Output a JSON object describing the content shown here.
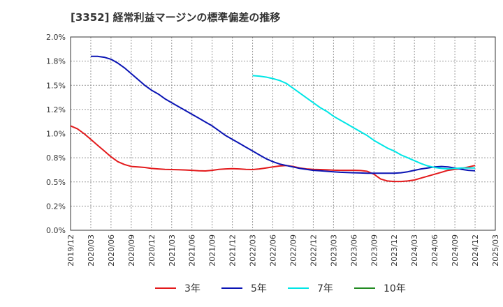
{
  "chart_data": {
    "type": "line",
    "title": "[3352]  経常利益マージンの標準偏差の推移",
    "x_ticks": [
      "2019/12",
      "2020/03",
      "2020/06",
      "2020/09",
      "2020/12",
      "2021/03",
      "2021/06",
      "2021/09",
      "2021/12",
      "2022/03",
      "2022/06",
      "2022/09",
      "2022/12",
      "2023/03",
      "2023/06",
      "2023/09",
      "2023/12",
      "2024/03",
      "2024/06",
      "2024/09",
      "2024/12",
      "2025/03"
    ],
    "y_ticks": [
      "0.0%",
      "0.2%",
      "0.5%",
      "0.8%",
      "1.0%",
      "1.2%",
      "1.5%",
      "1.8%",
      "2.0%"
    ],
    "ylim": [
      0,
      2.0
    ],
    "grid": true,
    "legend_position": "bottom",
    "series": [
      {
        "name": "3年",
        "color": "#e31a1c",
        "x": [
          "2019/12",
          "2020/01",
          "2020/02",
          "2020/03",
          "2020/04",
          "2020/05",
          "2020/06",
          "2020/07",
          "2020/08",
          "2020/09",
          "2020/10",
          "2020/11",
          "2020/12",
          "2021/01",
          "2021/02",
          "2021/03",
          "2021/04",
          "2021/05",
          "2021/06",
          "2021/07",
          "2021/08",
          "2021/09",
          "2021/10",
          "2021/11",
          "2021/12",
          "2022/01",
          "2022/02",
          "2022/03",
          "2022/04",
          "2022/05",
          "2022/06",
          "2022/07",
          "2022/08",
          "2022/09",
          "2022/10",
          "2022/11",
          "2022/12",
          "2023/01",
          "2023/02",
          "2023/03",
          "2023/04",
          "2023/05",
          "2023/06",
          "2023/07",
          "2023/08",
          "2023/09",
          "2023/10",
          "2023/11",
          "2023/12",
          "2024/01",
          "2024/02",
          "2024/03",
          "2024/04",
          "2024/05",
          "2024/06",
          "2024/07",
          "2024/08",
          "2024/09",
          "2024/10",
          "2024/11",
          "2024/12"
        ],
        "values": [
          1.08,
          1.05,
          1.0,
          0.94,
          0.88,
          0.82,
          0.76,
          0.71,
          0.68,
          0.66,
          0.655,
          0.65,
          0.64,
          0.635,
          0.63,
          0.628,
          0.626,
          0.624,
          0.62,
          0.616,
          0.614,
          0.62,
          0.63,
          0.635,
          0.637,
          0.635,
          0.63,
          0.628,
          0.635,
          0.645,
          0.655,
          0.665,
          0.67,
          0.66,
          0.645,
          0.635,
          0.63,
          0.628,
          0.625,
          0.622,
          0.62,
          0.62,
          0.62,
          0.618,
          0.61,
          0.58,
          0.53,
          0.51,
          0.505,
          0.505,
          0.51,
          0.52,
          0.54,
          0.56,
          0.58,
          0.6,
          0.62,
          0.63,
          0.64,
          0.655,
          0.67
        ]
      },
      {
        "name": "5年",
        "color": "#0a14b4",
        "x": [
          "2020/03",
          "2020/04",
          "2020/05",
          "2020/06",
          "2020/07",
          "2020/08",
          "2020/09",
          "2020/10",
          "2020/11",
          "2020/12",
          "2021/01",
          "2021/02",
          "2021/03",
          "2021/04",
          "2021/05",
          "2021/06",
          "2021/07",
          "2021/08",
          "2021/09",
          "2021/10",
          "2021/11",
          "2021/12",
          "2022/01",
          "2022/02",
          "2022/03",
          "2022/04",
          "2022/05",
          "2022/06",
          "2022/07",
          "2022/08",
          "2022/09",
          "2022/10",
          "2022/11",
          "2022/12",
          "2023/01",
          "2023/02",
          "2023/03",
          "2023/04",
          "2023/05",
          "2023/06",
          "2023/07",
          "2023/08",
          "2023/09",
          "2023/10",
          "2023/11",
          "2023/12",
          "2024/01",
          "2024/02",
          "2024/03",
          "2024/04",
          "2024/05",
          "2024/06",
          "2024/07",
          "2024/08",
          "2024/09",
          "2024/10",
          "2024/11",
          "2024/12"
        ],
        "values": [
          1.8,
          1.8,
          1.79,
          1.77,
          1.73,
          1.68,
          1.62,
          1.56,
          1.5,
          1.45,
          1.41,
          1.36,
          1.32,
          1.28,
          1.24,
          1.2,
          1.16,
          1.12,
          1.08,
          1.03,
          0.98,
          0.94,
          0.9,
          0.86,
          0.82,
          0.78,
          0.74,
          0.71,
          0.685,
          0.67,
          0.655,
          0.64,
          0.63,
          0.62,
          0.615,
          0.61,
          0.605,
          0.6,
          0.598,
          0.595,
          0.593,
          0.59,
          0.59,
          0.59,
          0.59,
          0.59,
          0.595,
          0.605,
          0.62,
          0.635,
          0.645,
          0.655,
          0.66,
          0.655,
          0.645,
          0.63,
          0.62,
          0.615
        ]
      },
      {
        "name": "7年",
        "color": "#00e6e6",
        "x": [
          "2022/03",
          "2022/04",
          "2022/05",
          "2022/06",
          "2022/07",
          "2022/08",
          "2022/09",
          "2022/10",
          "2022/11",
          "2022/12",
          "2023/01",
          "2023/02",
          "2023/03",
          "2023/04",
          "2023/05",
          "2023/06",
          "2023/07",
          "2023/08",
          "2023/09",
          "2023/10",
          "2023/11",
          "2023/12",
          "2024/01",
          "2024/02",
          "2024/03",
          "2024/04",
          "2024/05",
          "2024/06",
          "2024/07",
          "2024/08",
          "2024/09",
          "2024/10",
          "2024/11",
          "2024/12"
        ],
        "values": [
          1.6,
          1.595,
          1.585,
          1.57,
          1.55,
          1.52,
          1.47,
          1.42,
          1.37,
          1.32,
          1.27,
          1.23,
          1.18,
          1.14,
          1.1,
          1.06,
          1.02,
          0.98,
          0.93,
          0.89,
          0.85,
          0.82,
          0.78,
          0.75,
          0.72,
          0.69,
          0.665,
          0.65,
          0.64,
          0.635,
          0.64,
          0.645,
          0.645,
          0.645
        ]
      },
      {
        "name": "10年",
        "color": "#228b22",
        "x": [],
        "values": []
      }
    ]
  }
}
